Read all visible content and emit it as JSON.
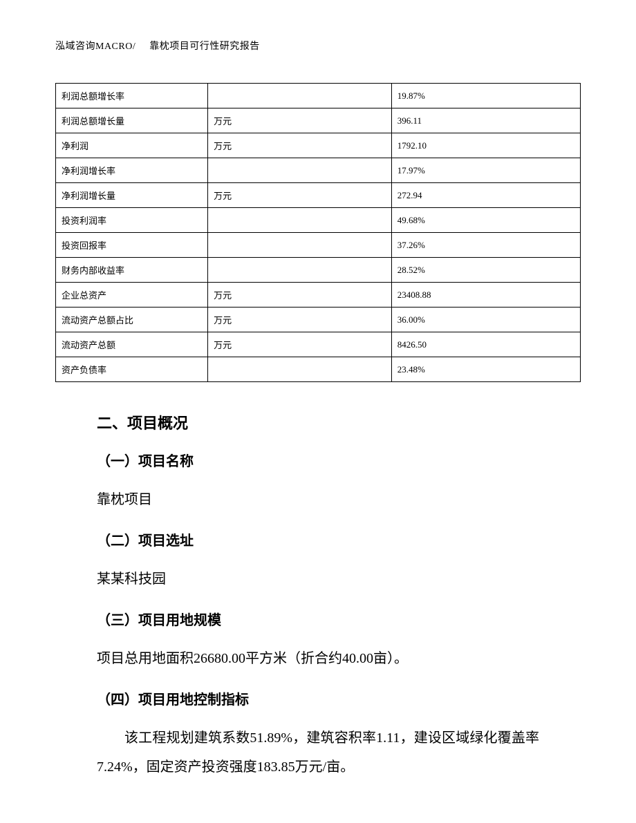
{
  "header": {
    "left": "泓域咨询MACRO/",
    "right": "靠枕项目可行性研究报告"
  },
  "table": {
    "col_widths_pct": [
      29,
      35,
      36
    ],
    "border_color": "#000000",
    "font_size_pt": 10,
    "rows": [
      {
        "name": "利润总额增长率",
        "unit": "",
        "value": "19.87%"
      },
      {
        "name": "利润总额增长量",
        "unit": "万元",
        "value": "396.11"
      },
      {
        "name": "净利润",
        "unit": "万元",
        "value": "1792.10"
      },
      {
        "name": "净利润增长率",
        "unit": "",
        "value": "17.97%"
      },
      {
        "name": "净利润增长量",
        "unit": "万元",
        "value": "272.94"
      },
      {
        "name": "投资利润率",
        "unit": "",
        "value": "49.68%"
      },
      {
        "name": "投资回报率",
        "unit": "",
        "value": "37.26%"
      },
      {
        "name": "财务内部收益率",
        "unit": "",
        "value": "28.52%"
      },
      {
        "name": "企业总资产",
        "unit": "万元",
        "value": "23408.88"
      },
      {
        "name": "流动资产总额占比",
        "unit": "万元",
        "value": "36.00%"
      },
      {
        "name": "流动资产总额",
        "unit": "万元",
        "value": "8426.50"
      },
      {
        "name": "资产负债率",
        "unit": "",
        "value": "23.48%"
      }
    ]
  },
  "sections": {
    "h2": "二、项目概况",
    "s1": {
      "heading": "（一）项目名称",
      "text": "靠枕项目"
    },
    "s2": {
      "heading": "（二）项目选址",
      "text": "某某科技园"
    },
    "s3": {
      "heading": "（三）项目用地规模",
      "text": "项目总用地面积26680.00平方米（折合约40.00亩）。"
    },
    "s4": {
      "heading": "（四）项目用地控制指标",
      "text": "该工程规划建筑系数51.89%，建筑容积率1.11，建设区域绿化覆盖率7.24%，固定资产投资强度183.85万元/亩。"
    }
  },
  "colors": {
    "text": "#000000",
    "background": "#ffffff",
    "table_border": "#000000"
  },
  "typography": {
    "body_font": "SimSun",
    "heading_font": "SimHei",
    "body_size_pt": 15,
    "h2_size_pt": 17,
    "h3_size_pt": 15,
    "line_height": 2.1
  }
}
